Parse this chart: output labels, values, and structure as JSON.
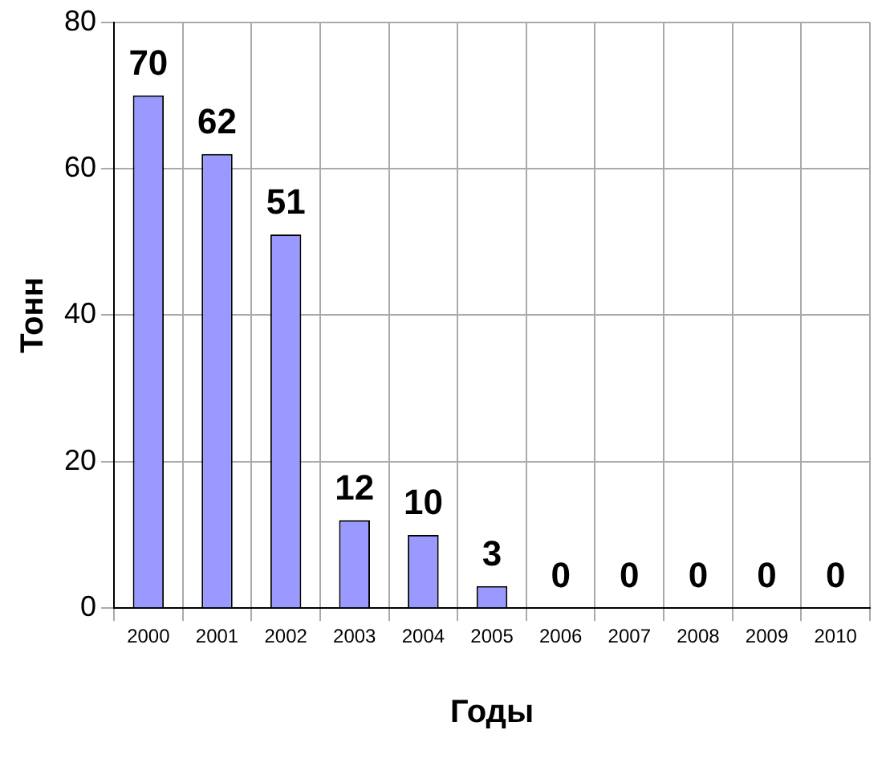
{
  "chart_data": {
    "type": "bar",
    "xlabel": "Годы",
    "ylabel": "Тонн",
    "categories": [
      "2000",
      "2001",
      "2002",
      "2003",
      "2004",
      "2005",
      "2006",
      "2007",
      "2008",
      "2009",
      "2010"
    ],
    "values": [
      70,
      62,
      51,
      12,
      10,
      3,
      0,
      0,
      0,
      0,
      0
    ],
    "color": "#9999ff",
    "ylim": [
      0,
      80
    ],
    "yticks": [
      0,
      20,
      40,
      60,
      80
    ],
    "grid": true,
    "data_labels": true
  }
}
